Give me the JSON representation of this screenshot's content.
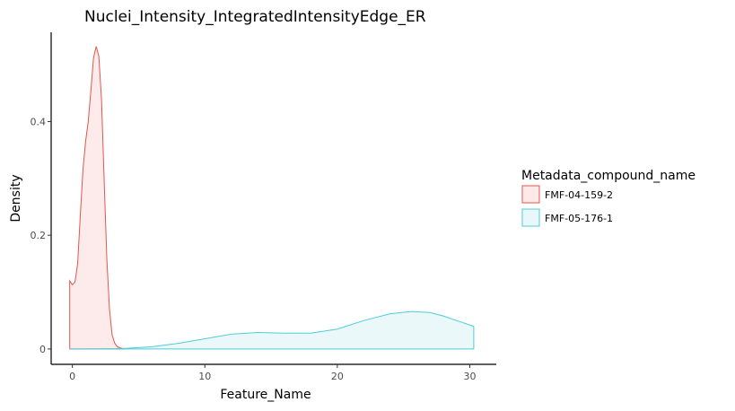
{
  "chart_data": {
    "type": "area",
    "title": "Nuclei_Intensity_IntegratedIntensityEdge_ER",
    "xlabel": "Feature_Name",
    "ylabel": "Density",
    "xlim": [
      -1.6,
      32
    ],
    "ylim": [
      -0.027,
      0.557
    ],
    "x_ticks": [
      0,
      10,
      20,
      30
    ],
    "x_tick_labels": [
      "0",
      "10",
      "20",
      "30"
    ],
    "y_ticks": [
      0,
      0.2,
      0.4
    ],
    "y_tick_labels": [
      "0",
      "0.2",
      "0.4"
    ],
    "grid": false,
    "legend": {
      "title": "Metadata_compound_name",
      "placement": "right"
    },
    "series": [
      {
        "name": "FMF-04-159-2",
        "line_color": "#E0574F",
        "fill_color": "#FCE9E8",
        "x": [
          -0.2,
          0.0,
          0.2,
          0.4,
          0.6,
          0.8,
          1.0,
          1.2,
          1.4,
          1.6,
          1.8,
          2.0,
          2.2,
          2.4,
          2.6,
          2.8,
          3.0,
          3.2,
          3.4,
          3.6,
          3.8,
          4.0
        ],
        "y": [
          0.12,
          0.113,
          0.118,
          0.15,
          0.235,
          0.315,
          0.365,
          0.4,
          0.455,
          0.512,
          0.532,
          0.515,
          0.44,
          0.3,
          0.16,
          0.07,
          0.025,
          0.01,
          0.004,
          0.002,
          0.001,
          0.0
        ]
      },
      {
        "name": "FMF-05-176-1",
        "line_color": "#4FCCD8",
        "fill_color": "#E8F7F9",
        "x": [
          -0.2,
          2,
          4,
          6,
          8,
          10,
          12,
          14,
          16,
          18,
          20,
          22,
          24,
          25.6,
          27,
          28,
          29,
          30.3
        ],
        "y": [
          0.0,
          0.0003,
          0.001,
          0.004,
          0.01,
          0.018,
          0.026,
          0.029,
          0.028,
          0.028,
          0.035,
          0.05,
          0.062,
          0.066,
          0.064,
          0.058,
          0.05,
          0.04
        ]
      }
    ]
  }
}
